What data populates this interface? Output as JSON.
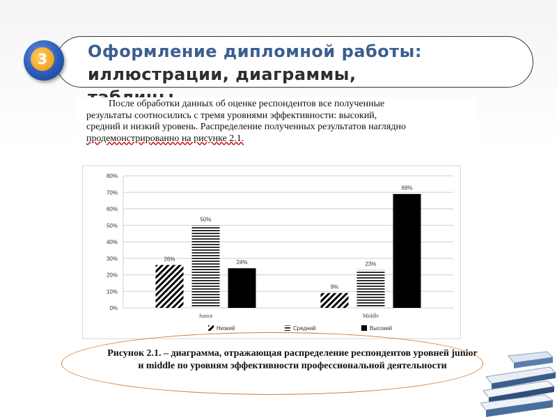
{
  "slide": {
    "number": "3",
    "title_lines": [
      "Оформление дипломной работы:",
      "иллюстрации, диаграммы,",
      "таблицы"
    ]
  },
  "document": {
    "paragraph_lines": [
      "После обработки данных об оценке респондентов все полученные",
      "результаты соотносились с тремя уровнями эффективности: высокий,",
      "средний и низкий уровень. Распределение полученных результатов наглядно",
      "продемонстрированно на рисунке 2.1."
    ],
    "caption": "Рисунок 2.1. – диаграмма, отражающая распределение респондентов уровней junior и middle по уровням эффективности профессиональной деятельности"
  },
  "chart_data": {
    "type": "bar",
    "categories": [
      "Junior",
      "Middle"
    ],
    "series": [
      {
        "name": "Низкий",
        "values": [
          26,
          9
        ],
        "labels": [
          "26%",
          "9%"
        ]
      },
      {
        "name": "Средний",
        "values": [
          50,
          23
        ],
        "labels": [
          "50%",
          "23%"
        ]
      },
      {
        "name": "Высокий",
        "values": [
          24,
          69
        ],
        "labels": [
          "24%",
          "69%"
        ]
      }
    ],
    "ylim": [
      0,
      80
    ],
    "yticks": [
      "0%",
      "10%",
      "20%",
      "30%",
      "40%",
      "50%",
      "60%",
      "70%",
      "80%"
    ],
    "grid": true,
    "legend_position": "bottom"
  },
  "colors": {
    "title_blue": "#3a5f90",
    "badge_blue": "#2a5bb8",
    "badge_orange": "#f3a21c",
    "ellipse_orange": "#c97a3a"
  }
}
